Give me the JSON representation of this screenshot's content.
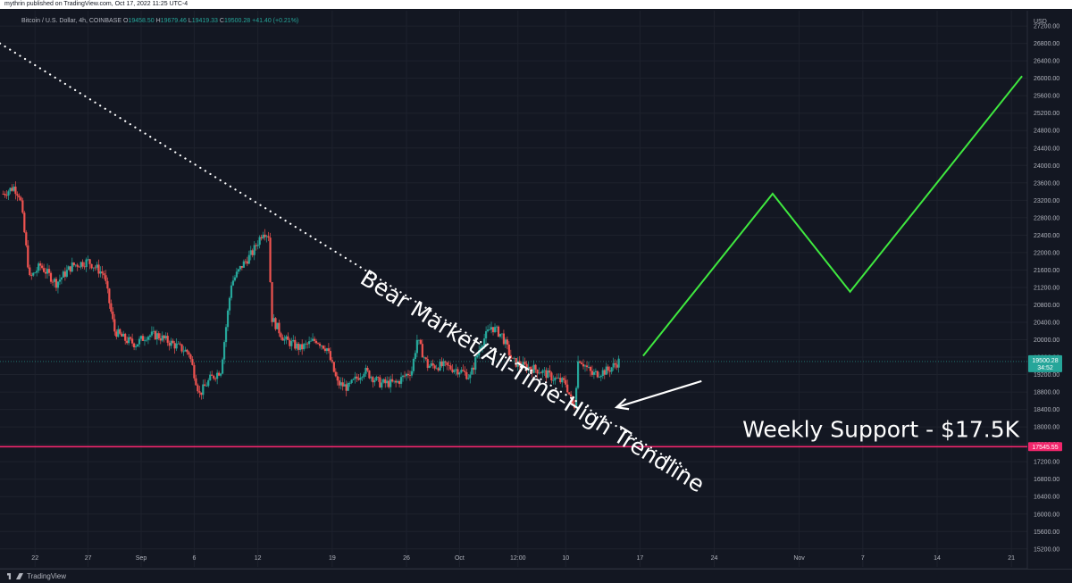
{
  "header": {
    "publisher": "mythrin published on TradingView.com, Oct 17, 2022 11:25 UTC-4"
  },
  "symbol": {
    "name": "Bitcoin / U.S. Dollar, 4h, COINBASE",
    "open_label": "O",
    "open": "19458.50",
    "high_label": "H",
    "high": "19679.46",
    "low_label": "L",
    "low": "19419.33",
    "close_label": "C",
    "close": "19500.28",
    "change": "+41.40 (+0.21%)"
  },
  "footer": {
    "brand": "TradingView"
  },
  "colors": {
    "background": "#131722",
    "grid": "#1e222d",
    "up_candle": "#26a69a",
    "down_candle": "#ef5350",
    "projection": "#3fe83f",
    "support": "#f2266c",
    "annotation": "#ffffff"
  },
  "chart_data": {
    "type": "candlestick",
    "currency": "USD",
    "y_ticks": [
      15200,
      15600,
      16000,
      16400,
      16800,
      17200,
      17600,
      18000,
      18400,
      18800,
      19200,
      19600,
      20000,
      20400,
      20800,
      21200,
      21600,
      22000,
      22400,
      22800,
      23200,
      23600,
      24000,
      24400,
      24800,
      25200,
      25600,
      26000,
      26400,
      26800,
      27200
    ],
    "ylim": [
      14950,
      27550
    ],
    "x_tick_labels": [
      "22",
      "27",
      "Sep",
      "6",
      "12",
      "19",
      "26",
      "Oct",
      "12:00",
      "10",
      "17",
      "24",
      "Nov",
      "7",
      "14",
      "21"
    ],
    "x_tick_days": [
      0,
      5,
      10,
      15,
      21,
      28,
      35,
      40,
      45.5,
      50,
      57,
      64,
      72,
      78,
      85,
      92
    ],
    "x_range_days": [
      -3.3,
      93.5
    ],
    "price_path": [
      [
        -3.0,
        23350
      ],
      [
        -2.0,
        23500
      ],
      [
        -1.4,
        23300
      ],
      [
        -0.5,
        21400
      ],
      [
        0.5,
        21700
      ],
      [
        2.0,
        21300
      ],
      [
        3.5,
        21700
      ],
      [
        5.0,
        21800
      ],
      [
        6.5,
        21500
      ],
      [
        7.5,
        20200
      ],
      [
        8.5,
        20000
      ],
      [
        9.5,
        19900
      ],
      [
        10.5,
        20100
      ],
      [
        11.5,
        20100
      ],
      [
        13.0,
        19900
      ],
      [
        14.5,
        19700
      ],
      [
        15.5,
        18750
      ],
      [
        16.5,
        19100
      ],
      [
        17.5,
        19300
      ],
      [
        18.5,
        21300
      ],
      [
        19.5,
        21700
      ],
      [
        20.5,
        22000
      ],
      [
        21.5,
        22500
      ],
      [
        22.0,
        22400
      ],
      [
        22.3,
        20500
      ],
      [
        23.5,
        20000
      ],
      [
        25.0,
        19800
      ],
      [
        26.5,
        20000
      ],
      [
        27.5,
        19800
      ],
      [
        28.5,
        19000
      ],
      [
        29.5,
        18900
      ],
      [
        31.0,
        19300
      ],
      [
        32.5,
        19000
      ],
      [
        34.0,
        19000
      ],
      [
        35.5,
        19300
      ],
      [
        36.0,
        20000
      ],
      [
        37.0,
        19400
      ],
      [
        38.5,
        19400
      ],
      [
        40.0,
        19300
      ],
      [
        41.0,
        19150
      ],
      [
        42.0,
        19900
      ],
      [
        43.0,
        20300
      ],
      [
        44.0,
        20100
      ],
      [
        45.0,
        19500
      ],
      [
        46.0,
        19400
      ],
      [
        47.5,
        19300
      ],
      [
        49.0,
        19100
      ],
      [
        50.0,
        19000
      ],
      [
        50.8,
        18400
      ],
      [
        51.2,
        19600
      ],
      [
        52.5,
        19200
      ],
      [
        54.0,
        19300
      ],
      [
        55.0,
        19500
      ]
    ],
    "trendline": {
      "label": "Bear Market/All-Time-High Trendline",
      "from": [
        -3.3,
        26800
      ],
      "to": [
        61.5,
        17000
      ],
      "style": "dotted"
    },
    "support_line": {
      "label": "Weekly Support - $17.5K",
      "price": 17545.55,
      "price_label": "17545.55"
    },
    "current_price": {
      "price": 19500.28,
      "label": "19500.28",
      "countdown": "34:52"
    },
    "projection": {
      "points": [
        [
          57.3,
          19630
        ],
        [
          69.5,
          23350
        ],
        [
          76.8,
          21100
        ],
        [
          93.0,
          26050
        ]
      ]
    },
    "arrow": {
      "from": [
        62.8,
        19050
      ],
      "to": [
        54.8,
        18450
      ]
    }
  }
}
